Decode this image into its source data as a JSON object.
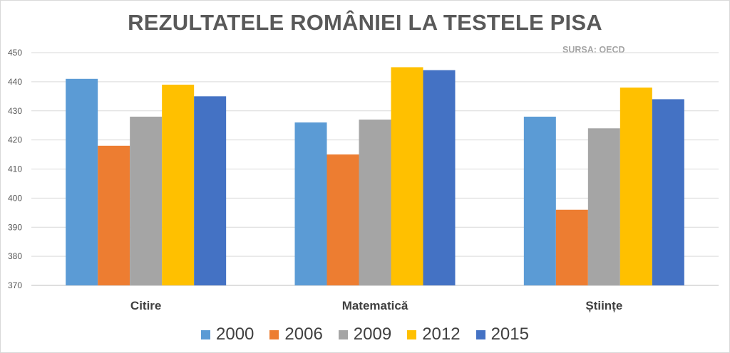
{
  "chart_data": {
    "type": "bar",
    "title": "REZULTATELE ROMÂNIEI LA TESTELE PISA",
    "source": "SURSA: OECD",
    "categories": [
      "Citire",
      "Matematică",
      "Științe"
    ],
    "series": [
      {
        "name": "2000",
        "color": "#5b9bd5",
        "values": [
          441,
          426,
          428
        ]
      },
      {
        "name": "2006",
        "color": "#ed7d31",
        "values": [
          418,
          415,
          396
        ]
      },
      {
        "name": "2009",
        "color": "#a5a5a5",
        "values": [
          428,
          427,
          424
        ]
      },
      {
        "name": "2012",
        "color": "#ffc000",
        "values": [
          439,
          445,
          438
        ]
      },
      {
        "name": "2015",
        "color": "#4472c4",
        "values": [
          435,
          444,
          434
        ]
      }
    ],
    "ylim": [
      370,
      450
    ],
    "yticks": [
      "370",
      "380",
      "390",
      "400",
      "410",
      "420",
      "430",
      "440",
      "450"
    ],
    "grid": true,
    "legend_position": "bottom"
  }
}
